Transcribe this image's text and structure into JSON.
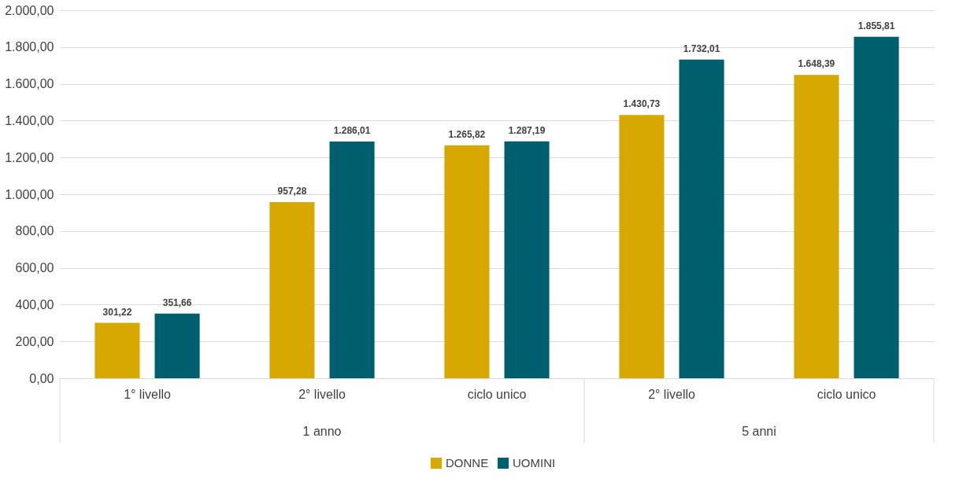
{
  "chart_data": {
    "type": "bar",
    "categories": [
      "1° livello",
      "2° livello",
      "ciclo unico",
      "2° livello",
      "ciclo unico"
    ],
    "series": [
      {
        "name": "DONNE",
        "color": "#d6a800",
        "values": [
          301.22,
          957.28,
          1265.82,
          1430.73,
          1648.39
        ],
        "value_labels": [
          "301,22",
          "957,28",
          "1.265,82",
          "1.430,73",
          "1.648,39"
        ]
      },
      {
        "name": "UOMINI",
        "color": "#005f6e",
        "values": [
          351.66,
          1286.01,
          1287.19,
          1732.01,
          1855.81
        ],
        "value_labels": [
          "351,66",
          "1.286,01",
          "1.287,19",
          "1.732,01",
          "1.855,81"
        ]
      }
    ],
    "ylim": [
      0,
      2000
    ],
    "yticks": [
      {
        "value": 0,
        "label": "0,00"
      },
      {
        "value": 200,
        "label": "200,00"
      },
      {
        "value": 400,
        "label": "400,00"
      },
      {
        "value": 600,
        "label": "600,00"
      },
      {
        "value": 800,
        "label": "800,00"
      },
      {
        "value": 1000,
        "label": "1.000,00"
      },
      {
        "value": 1200,
        "label": "1.200,00"
      },
      {
        "value": 1400,
        "label": "1.400,00"
      },
      {
        "value": 1600,
        "label": "1.600,00"
      },
      {
        "value": 1800,
        "label": "1.800,00"
      },
      {
        "value": 2000,
        "label": "2.000,00"
      }
    ],
    "annotations": [
      "1 anno",
      "5 anni"
    ],
    "grid": "y",
    "legend": "bottom"
  }
}
